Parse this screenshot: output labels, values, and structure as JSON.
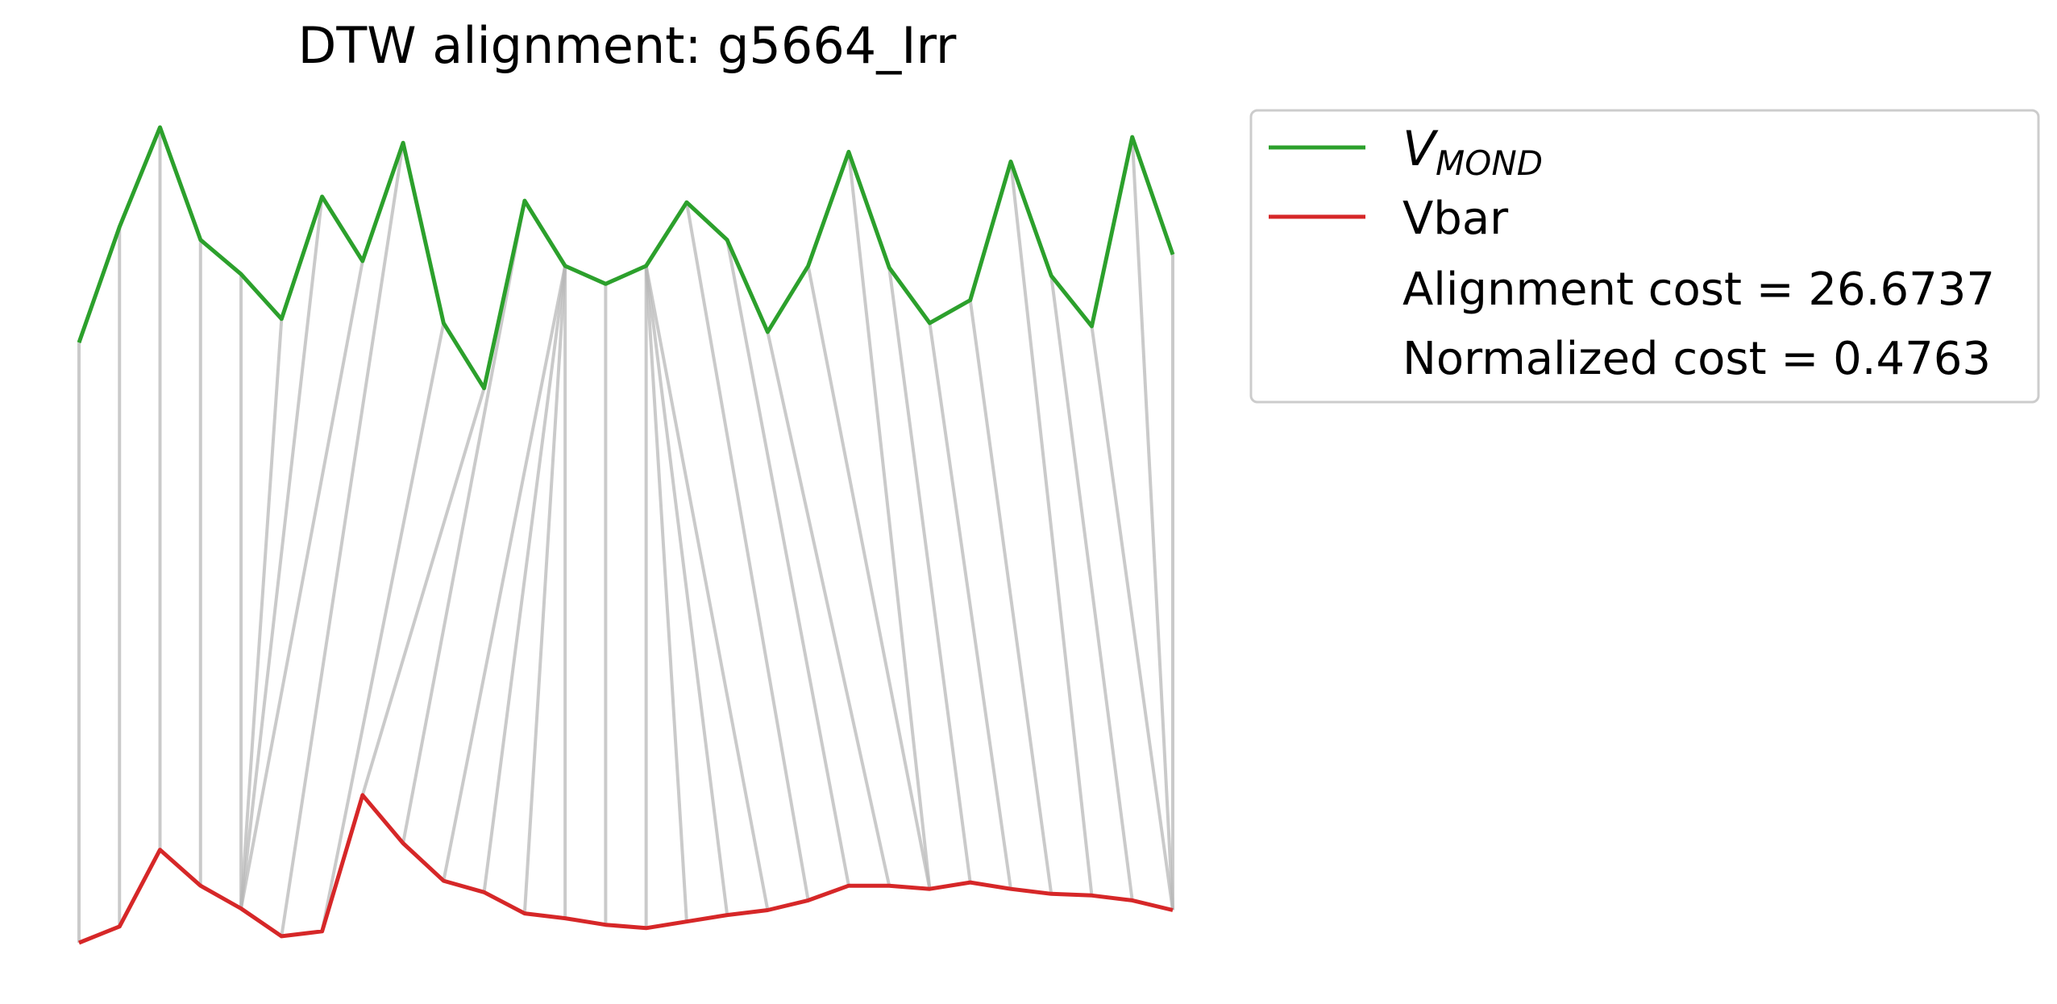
{
  "chart_data": {
    "type": "line",
    "title": "DTW alignment: g5664_Irr",
    "xlabel": "",
    "ylabel": "",
    "axes_visible": false,
    "grid": false,
    "legend_position": "upper-right-outside",
    "colors": {
      "vmond": "#2ca02c",
      "vbar": "#d62728",
      "alignment": "#b8b8b8",
      "legend_border": "#cccccc",
      "text": "#000000"
    },
    "x": [
      0,
      1,
      2,
      3,
      4,
      5,
      6,
      7,
      8,
      9,
      10,
      11,
      12,
      13,
      14,
      15,
      16,
      17,
      18,
      19,
      20,
      21,
      22,
      23,
      24,
      25,
      26,
      27
    ],
    "ylim": [
      0,
      1
    ],
    "series": [
      {
        "name": "V_MOND",
        "legend_main": "V",
        "legend_sub": "MOND",
        "color": "#2ca02c",
        "values": [
          0.736,
          0.878,
          1.0,
          0.862,
          0.82,
          0.765,
          0.915,
          0.836,
          0.981,
          0.76,
          0.68,
          0.91,
          0.83,
          0.808,
          0.83,
          0.908,
          0.862,
          0.749,
          0.83,
          0.97,
          0.828,
          0.76,
          0.788,
          0.958,
          0.818,
          0.756,
          0.988,
          0.844
        ]
      },
      {
        "name": "Vbar",
        "legend_main": "Vbar",
        "color": "#d62728",
        "values": [
          0.0,
          0.02,
          0.114,
          0.07,
          0.042,
          0.008,
          0.014,
          0.181,
          0.122,
          0.076,
          0.062,
          0.036,
          0.03,
          0.022,
          0.018,
          0.026,
          0.034,
          0.04,
          0.052,
          0.07,
          0.07,
          0.066,
          0.074,
          0.066,
          0.06,
          0.058,
          0.052,
          0.04
        ]
      }
    ],
    "alignment_path": [
      [
        0,
        0
      ],
      [
        1,
        1
      ],
      [
        2,
        2
      ],
      [
        3,
        3
      ],
      [
        4,
        4
      ],
      [
        5,
        4
      ],
      [
        6,
        4
      ],
      [
        7,
        4
      ],
      [
        8,
        5
      ],
      [
        9,
        6
      ],
      [
        10,
        7
      ],
      [
        11,
        8
      ],
      [
        12,
        9
      ],
      [
        12,
        10
      ],
      [
        12,
        11
      ],
      [
        12,
        12
      ],
      [
        13,
        13
      ],
      [
        14,
        14
      ],
      [
        14,
        15
      ],
      [
        14,
        16
      ],
      [
        14,
        17
      ],
      [
        15,
        18
      ],
      [
        16,
        19
      ],
      [
        17,
        20
      ],
      [
        18,
        21
      ],
      [
        19,
        21
      ],
      [
        20,
        22
      ],
      [
        21,
        23
      ],
      [
        22,
        24
      ],
      [
        23,
        25
      ],
      [
        24,
        26
      ],
      [
        25,
        27
      ],
      [
        26,
        27
      ],
      [
        27,
        27
      ]
    ],
    "legend": {
      "entries": [
        {
          "type": "line",
          "series": 0
        },
        {
          "type": "line",
          "series": 1
        },
        {
          "type": "text",
          "label": "Alignment cost = 26.6737"
        },
        {
          "type": "text",
          "label": "Normalized cost = 0.4763"
        }
      ]
    }
  }
}
